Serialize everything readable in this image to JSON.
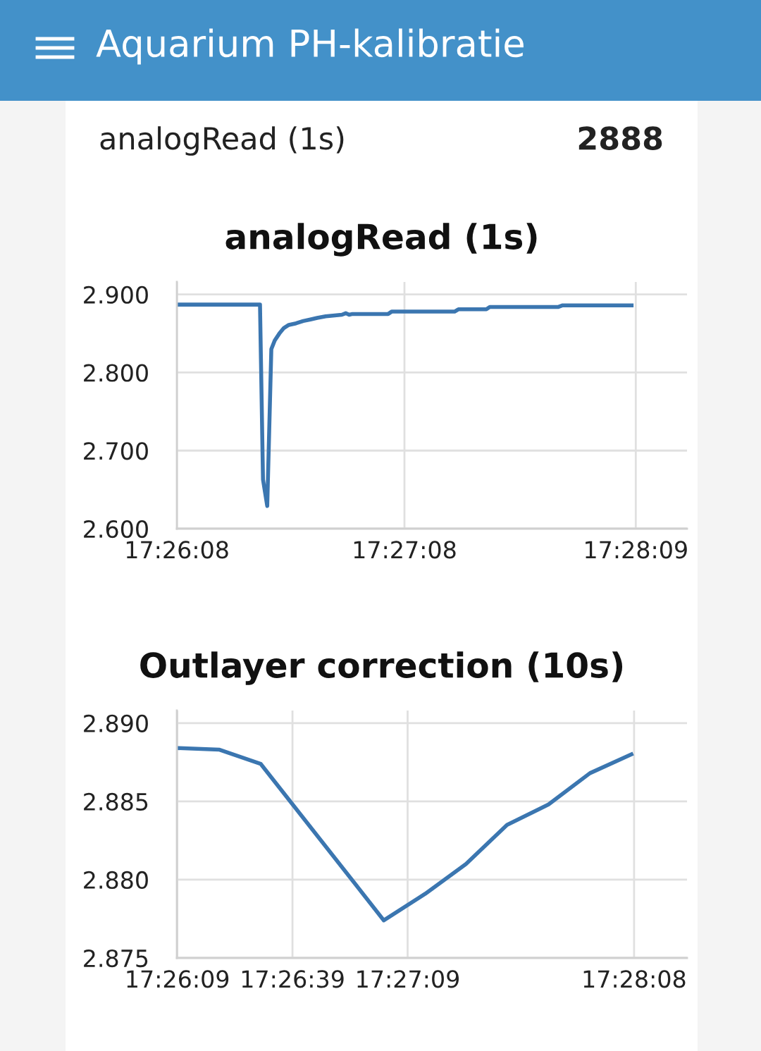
{
  "chart_data": [
    {
      "type": "other",
      "title": "Aquarium PH-kalibratie",
      "annotations": [
        "analogRead (1s)",
        "2888"
      ]
    },
    {
      "type": "line",
      "title": "analogRead (1s)",
      "grid": true,
      "marker": "none",
      "line_style": "solid",
      "x": [
        17.43556,
        17.44164,
        17.44186,
        17.44217,
        17.44247,
        17.44272,
        17.44306,
        17.44339,
        17.44375,
        17.44428,
        17.44481,
        17.44533,
        17.44583,
        17.44645,
        17.44764,
        17.44792,
        17.44817,
        17.44842,
        17.45103,
        17.45128,
        17.45589,
        17.45617,
        17.45822,
        17.45847,
        17.4635,
        17.46381,
        17.46886
      ],
      "series": [
        {
          "color": "#3b76b0",
          "values": [
            2887,
            2887,
            2663,
            2629,
            2830,
            2841,
            2850,
            2857,
            2861,
            2863,
            2866,
            2868,
            2870,
            2872,
            2874,
            2876,
            2874,
            2875,
            2875,
            2878,
            2878,
            2881,
            2881,
            2884,
            2884,
            2886,
            2886
          ]
        }
      ],
      "xlim": [
        17.43555,
        17.47292
      ],
      "xticks": [
        {
          "value": 17.435556,
          "label": "17:26:08"
        },
        {
          "value": 17.452222,
          "label": "17:27:08"
        },
        {
          "value": 17.469167,
          "label": "17:28:09"
        }
      ],
      "ylim": [
        2600,
        2916
      ],
      "yticks": [
        {
          "value": 2600,
          "label": "2.600"
        },
        {
          "value": 2700,
          "label": "2.700"
        },
        {
          "value": 2800,
          "label": "2.800"
        },
        {
          "value": 2900,
          "label": "2.900"
        }
      ]
    },
    {
      "type": "line",
      "title": "Outlayer correction (10s)",
      "grid": true,
      "marker": "none",
      "line_style": "solid",
      "x": [
        17.435944,
        17.438889,
        17.441861,
        17.450777,
        17.453777,
        17.456722,
        17.459694,
        17.462694,
        17.465694,
        17.468694
      ],
      "series": [
        {
          "color": "#3b76b0",
          "values": [
            2888.4,
            2888.3,
            2887.4,
            2877.4,
            2879.1,
            2881.0,
            2883.5,
            2884.8,
            2886.8,
            2888.0
          ]
        }
      ],
      "xlim": [
        17.4358,
        17.47272
      ],
      "xticks": [
        {
          "value": 17.435833,
          "label": "17:26:09"
        },
        {
          "value": 17.444167,
          "label": "17:26:39"
        },
        {
          "value": 17.4525,
          "label": "17:27:09"
        },
        {
          "value": 17.468889,
          "label": "17:28:08"
        }
      ],
      "ylim": [
        2875,
        2890.8
      ],
      "yticks": [
        {
          "value": 2875,
          "label": "2.875"
        },
        {
          "value": 2880,
          "label": "2.880"
        },
        {
          "value": 2885,
          "label": "2.885"
        },
        {
          "value": 2890,
          "label": "2.890"
        }
      ]
    }
  ]
}
